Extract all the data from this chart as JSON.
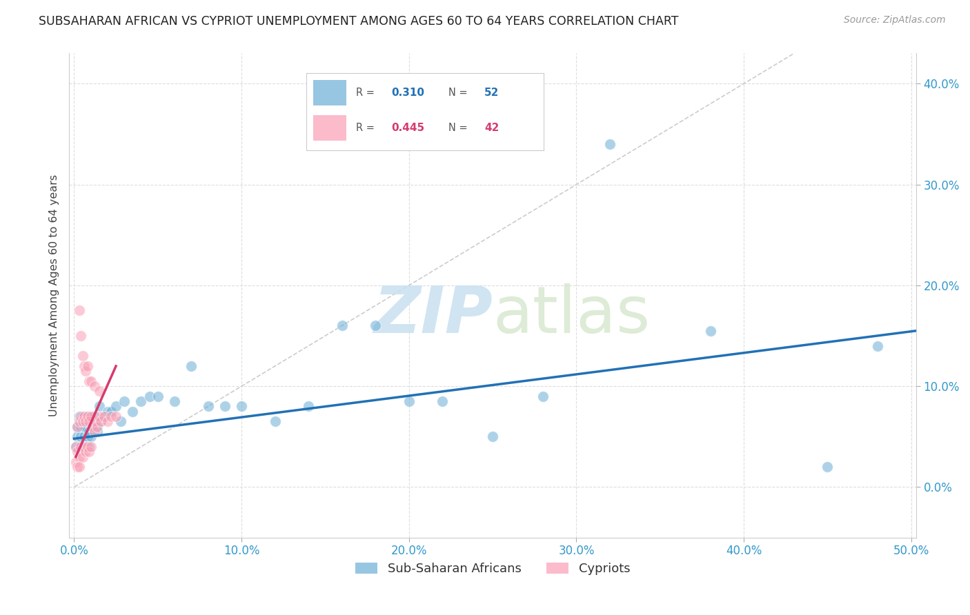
{
  "title": "SUBSAHARAN AFRICAN VS CYPRIOT UNEMPLOYMENT AMONG AGES 60 TO 64 YEARS CORRELATION CHART",
  "source": "Source: ZipAtlas.com",
  "ylabel": "Unemployment Among Ages 60 to 64 years",
  "xlim": [
    -0.003,
    0.503
  ],
  "ylim": [
    -0.05,
    0.43
  ],
  "xticks": [
    0.0,
    0.1,
    0.2,
    0.3,
    0.4,
    0.5
  ],
  "yticks": [
    0.0,
    0.1,
    0.2,
    0.3,
    0.4
  ],
  "ytick_labels": [
    "0.0%",
    "10.0%",
    "20.0%",
    "30.0%",
    "40.0%"
  ],
  "xtick_labels": [
    "0.0%",
    "10.0%",
    "20.0%",
    "30.0%",
    "40.0%",
    "50.0%"
  ],
  "blue_R": 0.31,
  "blue_N": 52,
  "pink_R": 0.445,
  "pink_N": 42,
  "blue_color": "#6baed6",
  "pink_color": "#fa9fb5",
  "blue_line_color": "#2171b5",
  "pink_line_color": "#d63b6e",
  "legend_label_blue": "Sub-Saharan Africans",
  "legend_label_pink": "Cypriots",
  "watermark_zip": "ZIP",
  "watermark_atlas": "atlas",
  "blue_scatter_x": [
    0.001,
    0.002,
    0.002,
    0.003,
    0.003,
    0.004,
    0.004,
    0.005,
    0.005,
    0.006,
    0.006,
    0.007,
    0.007,
    0.008,
    0.008,
    0.009,
    0.009,
    0.01,
    0.01,
    0.011,
    0.012,
    0.013,
    0.014,
    0.015,
    0.016,
    0.018,
    0.02,
    0.022,
    0.025,
    0.028,
    0.03,
    0.035,
    0.04,
    0.045,
    0.05,
    0.06,
    0.07,
    0.08,
    0.09,
    0.1,
    0.12,
    0.14,
    0.16,
    0.18,
    0.2,
    0.22,
    0.25,
    0.28,
    0.32,
    0.38,
    0.45,
    0.48
  ],
  "blue_scatter_y": [
    0.04,
    0.06,
    0.05,
    0.04,
    0.07,
    0.05,
    0.06,
    0.04,
    0.07,
    0.05,
    0.06,
    0.04,
    0.06,
    0.05,
    0.07,
    0.04,
    0.055,
    0.06,
    0.05,
    0.065,
    0.07,
    0.06,
    0.055,
    0.08,
    0.065,
    0.07,
    0.075,
    0.075,
    0.08,
    0.065,
    0.085,
    0.075,
    0.085,
    0.09,
    0.09,
    0.085,
    0.12,
    0.08,
    0.08,
    0.08,
    0.065,
    0.08,
    0.16,
    0.16,
    0.085,
    0.085,
    0.05,
    0.09,
    0.34,
    0.155,
    0.02,
    0.14
  ],
  "pink_scatter_x": [
    0.001,
    0.001,
    0.002,
    0.002,
    0.003,
    0.003,
    0.004,
    0.004,
    0.005,
    0.005,
    0.006,
    0.006,
    0.007,
    0.007,
    0.008,
    0.008,
    0.009,
    0.009,
    0.01,
    0.01,
    0.011,
    0.012,
    0.013,
    0.014,
    0.015,
    0.016,
    0.018,
    0.02,
    0.022,
    0.025,
    0.003,
    0.004,
    0.005,
    0.006,
    0.007,
    0.008,
    0.009,
    0.01,
    0.012,
    0.015,
    0.002,
    0.003
  ],
  "pink_scatter_y": [
    0.04,
    0.025,
    0.035,
    0.06,
    0.03,
    0.065,
    0.04,
    0.07,
    0.03,
    0.065,
    0.04,
    0.07,
    0.035,
    0.065,
    0.04,
    0.07,
    0.035,
    0.065,
    0.04,
    0.07,
    0.06,
    0.055,
    0.065,
    0.06,
    0.07,
    0.065,
    0.07,
    0.065,
    0.07,
    0.07,
    0.175,
    0.15,
    0.13,
    0.12,
    0.115,
    0.12,
    0.105,
    0.105,
    0.1,
    0.095,
    0.02,
    0.02
  ],
  "blue_trend_x": [
    0.0,
    0.503
  ],
  "blue_trend_y": [
    0.048,
    0.155
  ],
  "pink_trend_x": [
    0.001,
    0.025
  ],
  "pink_trend_y": [
    0.03,
    0.12
  ],
  "ref_line_x": [
    0.0,
    0.43
  ],
  "ref_line_y": [
    0.0,
    0.43
  ]
}
